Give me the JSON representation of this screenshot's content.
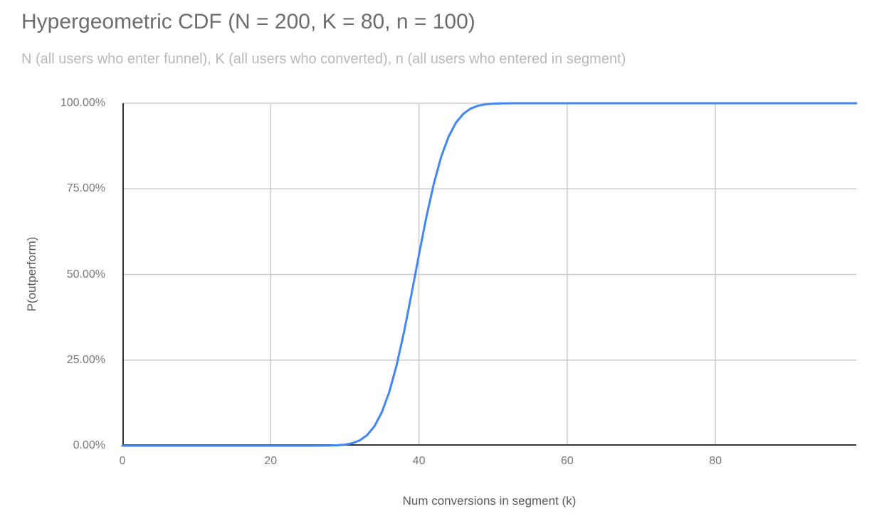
{
  "chart": {
    "title": "Hypergeometric CDF (N = 200, K = 80, n = 100)",
    "subtitle": "N (all users who enter funnel), K (all users who converted), n (all users who entered in segment)",
    "x_axis_title": "Num conversions in segment (k)",
    "y_axis_title": "P(outperform)",
    "colors": {
      "line": "#4285f4",
      "gridline": "#cccccc",
      "axis_line": "#333333",
      "tick_label": "#787878",
      "axis_title": "#5a5a5a",
      "title": "#6d6d6d",
      "subtitle": "#b9b9b9",
      "background": "#ffffff"
    }
  },
  "chart_data": {
    "type": "line",
    "title": "Hypergeometric CDF (N = 200, K = 80, n = 100)",
    "subtitle": "N (all users who enter funnel), K (all users who converted), n (all users who entered in segment)",
    "xlabel": "Num conversions in segment (k)",
    "ylabel": "P(outperform)",
    "xlim": [
      0,
      99
    ],
    "ylim": [
      0,
      1
    ],
    "grid": true,
    "legend": "none",
    "line_color": "#4285f4",
    "line_width": 3,
    "x_ticks": [
      {
        "value": 0,
        "label": "0"
      },
      {
        "value": 20,
        "label": "20"
      },
      {
        "value": 40,
        "label": "40"
      },
      {
        "value": 60,
        "label": "60"
      },
      {
        "value": 80,
        "label": "80"
      }
    ],
    "y_ticks": [
      {
        "value": 1.0,
        "label": "100.00%"
      },
      {
        "value": 0.75,
        "label": "75.00%"
      },
      {
        "value": 0.5,
        "label": "50.00%"
      },
      {
        "value": 0.25,
        "label": "25.00%"
      },
      {
        "value": 0.0,
        "label": "0.00%"
      }
    ],
    "series": [
      {
        "name": "P(outperform)",
        "x_start": 0,
        "x_step": 1,
        "y": [
          0,
          0,
          0,
          0,
          0,
          0,
          0,
          0,
          0,
          0,
          0,
          0,
          0,
          0,
          0,
          0,
          0,
          0,
          0,
          0,
          0,
          0,
          0,
          0,
          0,
          0.0,
          0.0001,
          0.0002,
          0.0005,
          0.0013,
          0.0031,
          0.0072,
          0.0154,
          0.0307,
          0.0567,
          0.0977,
          0.1568,
          0.2358,
          0.3329,
          0.4428,
          0.5572,
          0.6671,
          0.7642,
          0.8432,
          0.9023,
          0.9433,
          0.9693,
          0.9846,
          0.9928,
          0.9969,
          0.9988,
          0.9995,
          0.9998,
          0.9999,
          1,
          1,
          1,
          1,
          1,
          1,
          1,
          1,
          1,
          1,
          1,
          1,
          1,
          1,
          1,
          1,
          1,
          1,
          1,
          1,
          1,
          1,
          1,
          1,
          1,
          1,
          1,
          1,
          1,
          1,
          1,
          1,
          1,
          1,
          1,
          1,
          1,
          1,
          1,
          1,
          1,
          1,
          1,
          1,
          1,
          1
        ]
      }
    ]
  }
}
